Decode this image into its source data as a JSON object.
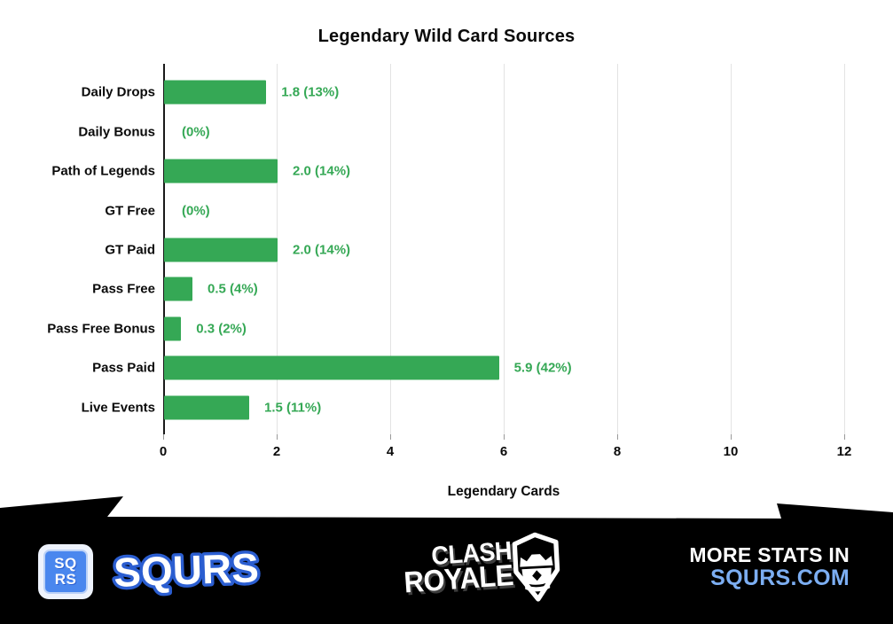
{
  "chart_data": {
    "type": "bar",
    "orientation": "horizontal",
    "title": "Legendary Wild Card Sources",
    "xlabel": "Legendary Cards",
    "categories": [
      "Daily Drops",
      "Daily Bonus",
      "Path of Legends",
      "GT Free",
      "GT Paid",
      "Pass Free",
      "Pass Free Bonus",
      "Pass Paid",
      "Live Events"
    ],
    "values": [
      1.8,
      0,
      2.0,
      0,
      2.0,
      0.5,
      0.3,
      5.9,
      1.5
    ],
    "value_labels": [
      "1.8 (13%)",
      "(0%)",
      "2.0 (14%)",
      "(0%)",
      "2.0 (14%)",
      "0.5 (4%)",
      "0.3 (2%)",
      "5.9 (42%)",
      "1.5 (11%)"
    ],
    "xticks": [
      0,
      2,
      4,
      6,
      8,
      10,
      12
    ],
    "xlim": [
      0,
      12
    ],
    "grid": true,
    "bar_color": "#35a855",
    "value_label_color": "#35a855"
  },
  "footer": {
    "background_color": "#000000",
    "squrs_badge": {
      "line1": "SQ",
      "line2": "RS",
      "blue": "#4a87ee"
    },
    "squrs_wordmark": "SQURS",
    "clash_logo": {
      "line1": "CLASH",
      "line2": "ROYALE"
    },
    "more_stats": {
      "line1": "MORE STATS IN",
      "line2": "SQURS.COM",
      "line2_color": "#7caef2"
    }
  }
}
